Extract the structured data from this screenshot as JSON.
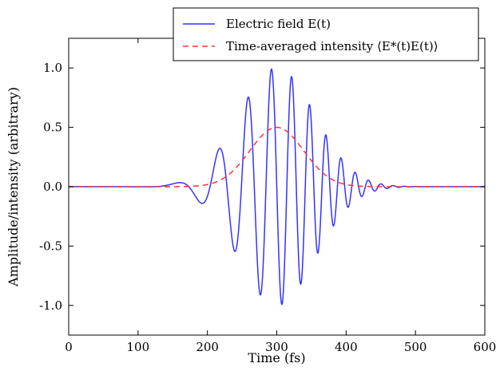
{
  "chart_data": {
    "type": "line",
    "xlabel": "Time (fs)",
    "ylabel": "Amplitude/intensity (arbitrary)",
    "xlim": [
      0,
      600
    ],
    "ylim": [
      -1.25,
      1.25
    ],
    "xticks": [
      "0",
      "100",
      "200",
      "300",
      "400",
      "500",
      "600"
    ],
    "yticks": [
      "1.0",
      "0.5",
      "0.0",
      "-0.5",
      "-1.0"
    ],
    "ytick_values": [
      1.0,
      0.5,
      0.0,
      -0.5,
      -1.0
    ],
    "xtick_values": [
      0,
      100,
      200,
      300,
      400,
      500,
      600
    ],
    "grid": false,
    "legend_position": "top-right",
    "series": [
      {
        "name": "Electric field E(t)",
        "style": "solid",
        "color": "#3333ff",
        "description_values": {
          "envelope_peak_time_fs": 300,
          "peak_amplitude": 1.0,
          "chirped": true,
          "pulse_start_fs": 140,
          "pulse_end_fs": 470
        }
      },
      {
        "name": "Time-averaged intensity ⟨E*(t)E(t)⟩",
        "style": "dashed",
        "color": "#ff3333",
        "description_values": {
          "peak_time_fs": 300,
          "peak_value": 0.5
        }
      }
    ]
  }
}
